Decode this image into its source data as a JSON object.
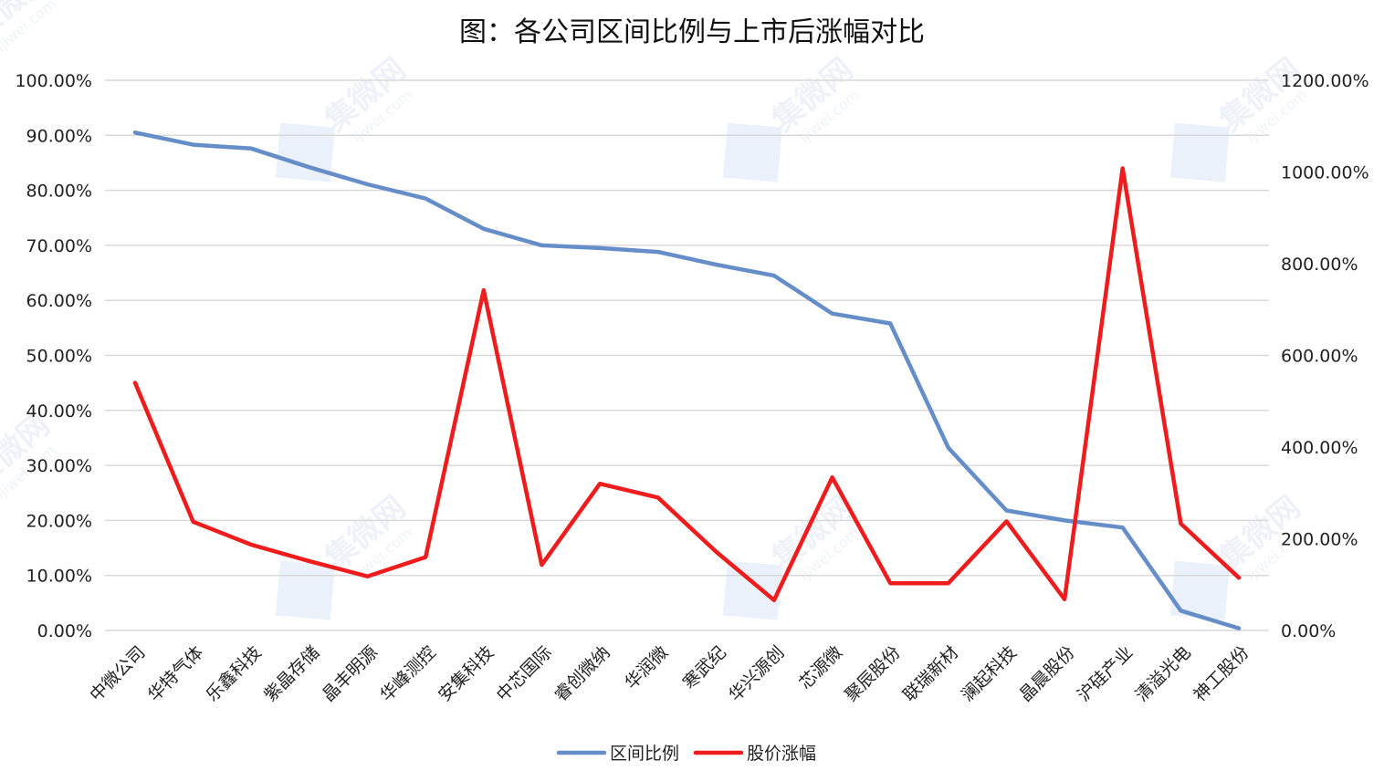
{
  "watermark": {
    "text": "集微网",
    "url": "ijiwei.com",
    "color": "#dbe6f5"
  },
  "chart_data": {
    "type": "line",
    "title": "图：各公司区间比例与上市后涨幅对比",
    "categories": [
      "中微公司",
      "华特气体",
      "乐鑫科技",
      "紫晶存储",
      "晶丰明源",
      "华峰测控",
      "安集科技",
      "中芯国际",
      "睿创微纳",
      "华润微",
      "寒武纪",
      "华兴源创",
      "芯源微",
      "聚辰股份",
      "联瑞新材",
      "澜起科技",
      "晶晨股份",
      "沪硅产业",
      "清溢光电",
      "神工股份"
    ],
    "y_left": {
      "min": 0,
      "max": 100,
      "step": 10,
      "tick_labels": [
        "0.00%",
        "10.00%",
        "20.00%",
        "30.00%",
        "40.00%",
        "50.00%",
        "60.00%",
        "70.00%",
        "80.00%",
        "90.00%",
        "100.00%"
      ]
    },
    "y_right": {
      "min": 0,
      "max": 1200,
      "step": 200,
      "tick_labels": [
        "0.00%",
        "200.00%",
        "400.00%",
        "600.00%",
        "800.00%",
        "1000.00%",
        "1200.00%"
      ]
    },
    "series": [
      {
        "name": "区间比例",
        "axis": "left",
        "color": "#658ec8",
        "values": [
          90.5,
          88.3,
          87.6,
          84.2,
          81.1,
          78.5,
          73.0,
          70.0,
          69.5,
          68.8,
          66.5,
          64.5,
          57.6,
          55.8,
          33.2,
          21.8,
          20.0,
          18.7,
          3.6,
          0.4
        ]
      },
      {
        "name": "股价涨幅",
        "axis": "right",
        "color": "#ee1c1c",
        "values": [
          540,
          237,
          187,
          151,
          118,
          160,
          742,
          143,
          320,
          290,
          172,
          66,
          334,
          103,
          103,
          238,
          68,
          1008,
          233,
          115
        ]
      }
    ],
    "grid": true,
    "legend": "bottom-center"
  }
}
